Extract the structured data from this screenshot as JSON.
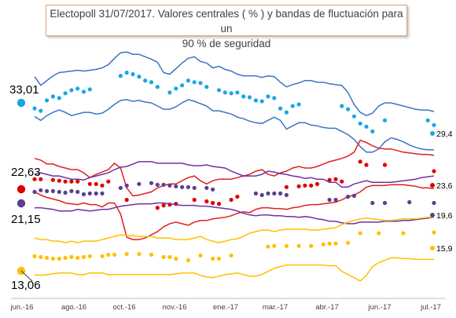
{
  "chart_data": {
    "type": "scatter",
    "title_line1": "Electopoll 31/07/2017. Valores centrales ( % ) y bandas de fluctuación para un",
    "title_line2": "90 % de seguridad",
    "x_ticks": [
      "jun.-16",
      "ago.-16",
      "oct.-16",
      "nov.-16",
      "ene.-17",
      "mar.-17",
      "abr.-17",
      "jun.-17",
      "jul.-17"
    ],
    "ylim": [
      8,
      40
    ],
    "grid": false,
    "legend": "none",
    "start_labels": [
      "33,01",
      "22,63",
      "21,15",
      "13,06"
    ],
    "end_labels": [
      "29,4",
      "23,6",
      "19,6",
      "15,9"
    ],
    "series": [
      {
        "color": "#1aa6e6",
        "band_color": "#3a74c4",
        "start_value": 33.01,
        "end_value": 29.4,
        "x": [
          1,
          2,
          3,
          4,
          5,
          6,
          7,
          8,
          9,
          10,
          11,
          12,
          13,
          14,
          15,
          16,
          17,
          18,
          19,
          20,
          21,
          22,
          23,
          24,
          25,
          26,
          27,
          28,
          29,
          30,
          31,
          32,
          33,
          34,
          35,
          36,
          37,
          38,
          39,
          40,
          41,
          42,
          43,
          44,
          45,
          46,
          47,
          48,
          49,
          50,
          51,
          52,
          53,
          54,
          55,
          56,
          57,
          58,
          59,
          60,
          61,
          62,
          63,
          64,
          65,
          66
        ],
        "values": [
          31.5,
          31.2,
          32.5,
          33.0,
          32.8,
          33.4,
          33.8,
          34.0,
          33.6,
          33.9,
          null,
          null,
          null,
          null,
          35.6,
          36.0,
          35.8,
          35.5,
          35.0,
          34.8,
          34.2,
          null,
          33.5,
          34.0,
          34.4,
          35.0,
          34.8,
          34.7,
          34.2,
          null,
          33.8,
          33.5,
          33.4,
          33.5,
          33.0,
          32.9,
          32.5,
          32.4,
          33.0,
          32.8,
          31.5,
          31.0,
          31.8,
          32.0,
          null,
          null,
          null,
          null,
          null,
          null,
          31.8,
          31.4,
          30.5,
          29.6,
          29.2,
          28.6,
          null,
          30.0,
          null,
          null,
          null,
          null,
          null,
          null,
          30.0,
          29.4
        ],
        "upper": [
          35.5,
          34.4,
          35.0,
          35.6,
          36.0,
          36.1,
          36.2,
          36.3,
          36.2,
          36.3,
          36.4,
          36.6,
          37.0,
          37.8,
          38.5,
          38.6,
          38.3,
          38.3,
          38.0,
          37.7,
          37.3,
          36.0,
          35.8,
          36.5,
          37.2,
          37.8,
          38.0,
          37.4,
          37.2,
          36.6,
          36.8,
          36.4,
          36.2,
          35.8,
          35.6,
          35.6,
          35.6,
          35.4,
          35.6,
          35.5,
          34.8,
          34.2,
          34.5,
          34.7,
          35.0,
          35.0,
          34.8,
          34.8,
          34.6,
          34.5,
          34.4,
          33.5,
          32.0,
          31.0,
          30.6,
          30.9,
          31.8,
          32.2,
          32.2,
          32.0,
          31.8,
          31.6,
          31.4,
          31.3,
          31.3,
          31.1
        ],
        "lower": [
          30.5,
          30.0,
          30.6,
          31.0,
          31.3,
          31.0,
          30.6,
          30.8,
          31.0,
          31.0,
          30.8,
          30.9,
          31.4,
          32.0,
          32.5,
          32.6,
          32.4,
          32.5,
          32.3,
          32.2,
          31.8,
          31.4,
          31.4,
          31.7,
          32.2,
          32.6,
          32.4,
          32.1,
          31.8,
          31.2,
          31.2,
          31.0,
          30.8,
          30.4,
          30.2,
          29.9,
          29.7,
          29.6,
          30.0,
          30.4,
          30.0,
          28.9,
          29.3,
          29.7,
          29.7,
          29.4,
          29.3,
          29.1,
          29.0,
          29.0,
          28.6,
          28.2,
          27.6,
          26.7,
          26.0,
          26.0,
          26.4,
          27.3,
          27.8,
          27.6,
          27.3,
          26.9,
          26.6,
          26.4,
          26.3,
          26.3
        ]
      },
      {
        "color": "#e00000",
        "band_color": "#e02020",
        "start_value": 22.63,
        "end_value": 23.6,
        "x": [
          1,
          2,
          3,
          4,
          5,
          6,
          7,
          8,
          9,
          10,
          11,
          12,
          13,
          14,
          15,
          16,
          17,
          18,
          19,
          20,
          21,
          22,
          23,
          24,
          25,
          26,
          27,
          28,
          29,
          30,
          31,
          32,
          33,
          34,
          35,
          36,
          37,
          38,
          39,
          40,
          41,
          42,
          43,
          44,
          45,
          46,
          47,
          48,
          49,
          50,
          51,
          52,
          53,
          54,
          55,
          56,
          57,
          58,
          59,
          60,
          61,
          62,
          63,
          64,
          65,
          66
        ],
        "values": [
          22.6,
          22.6,
          null,
          22.5,
          22.4,
          22.3,
          22.3,
          22.3,
          null,
          22.0,
          22.0,
          21.8,
          22.3,
          null,
          null,
          20.0,
          null,
          null,
          null,
          null,
          19.0,
          19.3,
          19.4,
          19.5,
          null,
          null,
          20.0,
          null,
          19.8,
          19.6,
          19.5,
          null,
          20.0,
          20.4,
          null,
          null,
          null,
          null,
          null,
          null,
          null,
          21.6,
          null,
          21.7,
          21.8,
          21.8,
          22.0,
          null,
          22.5,
          22.6,
          22.3,
          null,
          null,
          24.8,
          24.4,
          null,
          null,
          24.4,
          null,
          null,
          null,
          null,
          null,
          null,
          null,
          23.6
        ],
        "upper": [
          25.2,
          25.0,
          24.5,
          24.5,
          24.2,
          24.0,
          23.8,
          23.8,
          23.4,
          22.8,
          23.2,
          23.5,
          23.8,
          24.6,
          24.0,
          21.5,
          20.5,
          20.6,
          20.8,
          21.0,
          21.5,
          21.8,
          22.0,
          22.0,
          22.4,
          22.8,
          23.0,
          22.4,
          22.0,
          22.4,
          22.6,
          22.6,
          22.6,
          22.8,
          23.0,
          23.2,
          23.6,
          23.8,
          23.2,
          23.0,
          23.4,
          23.6,
          24.0,
          24.2,
          24.0,
          24.0,
          24.2,
          24.5,
          24.8,
          25.0,
          25.2,
          25.5,
          26.0,
          27.5,
          27.2,
          26.8,
          26.5,
          26.4,
          26.4,
          26.2,
          26.0,
          25.9,
          25.8,
          25.7,
          25.7,
          25.6
        ],
        "lower": [
          21.0,
          20.6,
          20.3,
          20.1,
          19.9,
          19.6,
          19.5,
          19.4,
          19.6,
          19.4,
          19.4,
          19.1,
          19.6,
          19.6,
          18.2,
          15.3,
          15.0,
          15.0,
          15.2,
          15.6,
          16.0,
          16.6,
          17.0,
          17.2,
          17.0,
          16.8,
          17.2,
          17.4,
          17.4,
          17.6,
          17.7,
          17.8,
          18.0,
          18.3,
          18.5,
          18.4,
          18.8,
          19.0,
          19.0,
          18.9,
          18.9,
          18.8,
          19.0,
          19.1,
          19.3,
          19.4,
          19.4,
          19.5,
          19.6,
          19.7,
          20.0,
          20.4,
          20.6,
          21.0,
          21.6,
          21.8,
          21.8,
          21.8,
          21.9,
          21.9,
          21.9,
          21.8,
          21.7,
          21.5,
          21.5,
          21.4
        ]
      },
      {
        "color": "#5b3f8f",
        "band_color": "#7030a0",
        "start_value": 21.15,
        "end_value": 19.6,
        "x": [
          1,
          2,
          3,
          4,
          5,
          6,
          7,
          8,
          9,
          10,
          11,
          12,
          13,
          14,
          15,
          16,
          17,
          18,
          19,
          20,
          21,
          22,
          23,
          24,
          25,
          26,
          27,
          28,
          29,
          30,
          31,
          32,
          33,
          34,
          35,
          36,
          37,
          38,
          39,
          40,
          41,
          42,
          43,
          44,
          45,
          46,
          47,
          48,
          49,
          50,
          51,
          52,
          53,
          54,
          55,
          56,
          57,
          58,
          59,
          60,
          61,
          62,
          63,
          64,
          65,
          66
        ],
        "values": [
          21.0,
          21.2,
          21.1,
          21.1,
          21.0,
          20.9,
          21.1,
          21.0,
          20.7,
          20.8,
          20.8,
          20.8,
          null,
          null,
          21.5,
          21.8,
          null,
          22.0,
          null,
          22.1,
          21.9,
          21.9,
          21.8,
          21.7,
          21.6,
          21.6,
          21.5,
          null,
          21.5,
          21.3,
          null,
          null,
          null,
          null,
          null,
          null,
          20.8,
          20.6,
          20.8,
          20.8,
          20.8,
          20.6,
          null,
          null,
          null,
          null,
          null,
          null,
          20.0,
          20.0,
          null,
          20.4,
          20.5,
          null,
          null,
          19.6,
          null,
          19.6,
          null,
          null,
          null,
          19.7,
          null,
          null,
          null,
          19.6
        ],
        "upper": [
          23.2,
          23.4,
          23.2,
          23.0,
          23.0,
          22.8,
          22.6,
          22.6,
          22.5,
          22.8,
          23.0,
          23.2,
          23.4,
          23.8,
          24.1,
          24.2,
          24.5,
          24.8,
          24.8,
          24.8,
          24.6,
          24.6,
          24.6,
          24.6,
          24.6,
          24.4,
          24.3,
          24.3,
          24.4,
          24.2,
          24.1,
          24.0,
          23.6,
          23.3,
          23.0,
          23.0,
          23.0,
          23.2,
          23.6,
          23.5,
          23.3,
          23.2,
          23.0,
          22.9,
          22.7,
          22.8,
          22.6,
          22.6,
          22.2,
          22.2,
          21.6,
          21.6,
          22.0,
          22.2,
          22.4,
          22.2,
          22.2,
          22.2,
          22.2,
          22.3,
          22.4,
          22.5,
          22.6,
          22.8,
          22.9,
          23.0
        ],
        "lower": [
          19.0,
          19.0,
          18.9,
          18.8,
          18.6,
          18.6,
          18.6,
          18.8,
          18.7,
          18.6,
          18.7,
          18.8,
          18.8,
          19.0,
          19.2,
          19.3,
          19.4,
          19.5,
          19.5,
          19.5,
          19.6,
          19.6,
          19.5,
          19.4,
          19.3,
          19.3,
          19.3,
          19.2,
          19.2,
          19.1,
          19.0,
          18.9,
          18.8,
          18.6,
          18.3,
          18.1,
          18.0,
          18.1,
          18.1,
          18.0,
          18.0,
          17.9,
          17.9,
          17.8,
          17.9,
          17.8,
          17.6,
          17.5,
          17.3,
          17.3,
          17.1,
          17.0,
          17.0,
          17.2,
          17.2,
          17.2,
          17.2,
          17.3,
          17.3,
          17.3,
          17.4,
          17.4,
          17.5,
          17.6,
          17.7,
          17.8
        ]
      },
      {
        "color": "#ffc000",
        "band_color": "#ffc000",
        "start_value": 13.06,
        "end_value": 15.9,
        "x": [
          1,
          2,
          3,
          4,
          5,
          6,
          7,
          8,
          9,
          10,
          11,
          12,
          13,
          14,
          15,
          16,
          17,
          18,
          19,
          20,
          21,
          22,
          23,
          24,
          25,
          26,
          27,
          28,
          29,
          30,
          31,
          32,
          33,
          34,
          35,
          36,
          37,
          38,
          39,
          40,
          41,
          42,
          43,
          44,
          45,
          46,
          47,
          48,
          49,
          50,
          51,
          52,
          53,
          54,
          55,
          56,
          57,
          58,
          59,
          60,
          61,
          62,
          63,
          64,
          65,
          66
        ],
        "values": [
          12.9,
          12.8,
          12.7,
          12.6,
          12.6,
          12.7,
          12.8,
          12.7,
          12.8,
          12.9,
          null,
          12.9,
          13.1,
          13.1,
          null,
          13.2,
          null,
          13.2,
          null,
          13.1,
          null,
          12.8,
          12.8,
          12.6,
          null,
          12.4,
          null,
          13.0,
          null,
          12.6,
          12.6,
          null,
          13.0,
          null,
          null,
          null,
          null,
          null,
          14.1,
          14.2,
          null,
          14.2,
          null,
          14.2,
          null,
          14.2,
          null,
          14.4,
          14.5,
          14.5,
          null,
          14.6,
          null,
          15.8,
          null,
          null,
          15.8,
          null,
          null,
          null,
          15.8,
          null,
          null,
          null,
          null,
          15.9
        ],
        "upper": [
          15.2,
          15.0,
          15.0,
          14.8,
          14.8,
          14.6,
          14.8,
          14.6,
          14.8,
          14.8,
          14.8,
          15.0,
          15.2,
          15.4,
          15.6,
          15.5,
          15.5,
          15.4,
          15.4,
          15.4,
          15.2,
          15.2,
          15.2,
          15.0,
          15.0,
          15.0,
          15.2,
          15.4,
          15.0,
          14.8,
          14.6,
          14.8,
          15.0,
          15.1,
          15.4,
          15.8,
          16.0,
          16.2,
          16.2,
          16.0,
          16.2,
          16.3,
          16.3,
          16.3,
          16.3,
          16.2,
          16.2,
          16.3,
          16.4,
          16.5,
          16.9,
          17.2,
          17.4,
          17.6,
          17.7,
          17.6,
          17.5,
          17.4,
          17.4,
          17.5,
          17.6,
          17.6,
          17.6,
          17.7,
          17.8,
          17.8
        ],
        "lower": [
          10.6,
          10.5,
          10.6,
          10.7,
          10.8,
          10.8,
          10.8,
          10.6,
          10.6,
          10.8,
          10.8,
          10.8,
          10.6,
          10.6,
          10.6,
          10.6,
          10.6,
          10.6,
          10.6,
          10.6,
          10.6,
          10.6,
          10.6,
          10.7,
          10.8,
          10.8,
          10.8,
          10.5,
          10.3,
          10.2,
          10.4,
          10.6,
          10.7,
          10.8,
          10.6,
          10.4,
          10.4,
          10.6,
          11.0,
          11.4,
          11.6,
          11.8,
          11.8,
          11.8,
          11.8,
          11.8,
          11.8,
          11.8,
          11.7,
          11.7,
          11.0,
          10.6,
          10.2,
          9.8,
          10.5,
          11.6,
          12.1,
          12.4,
          12.7,
          12.7,
          12.6,
          12.6,
          12.5,
          12.5,
          12.5,
          12.5
        ]
      }
    ]
  }
}
